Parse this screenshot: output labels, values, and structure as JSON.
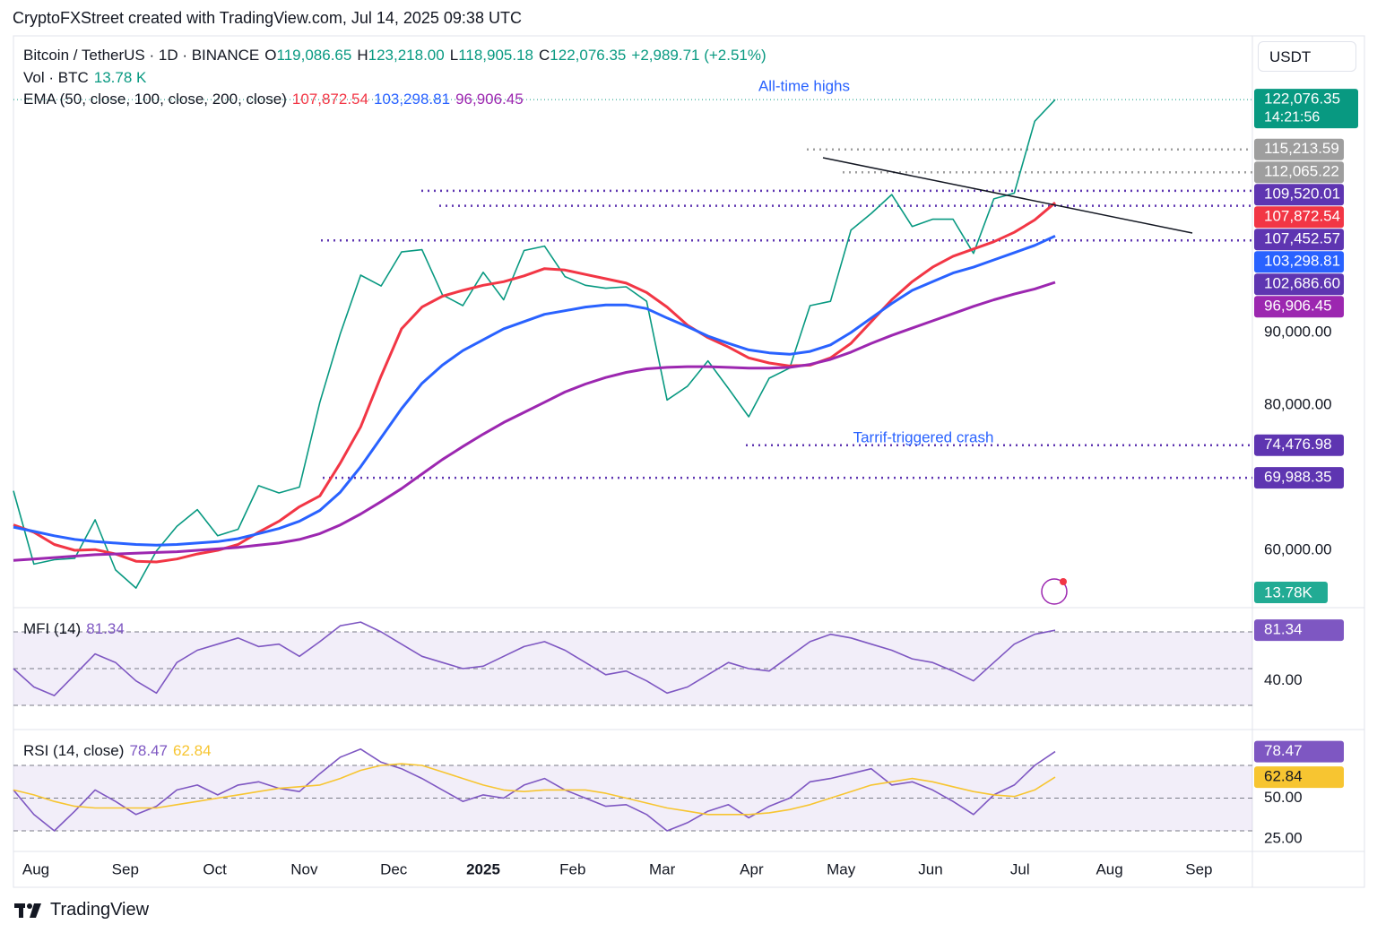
{
  "header": {
    "attribution": "CryptoFXStreet created with TradingView.com, Jul 14, 2025 09:38 UTC"
  },
  "footer": {
    "brand": "TradingView"
  },
  "chart_data": [
    {
      "type": "line",
      "title": "Bitcoin / TetherUS · 1D · BINANCE",
      "currency": "USDT",
      "ohlc": [
        {
          "name": "O",
          "value": 119086.65,
          "label": "119,086.65"
        },
        {
          "name": "H",
          "value": 123218.0,
          "label": "123,218.00"
        },
        {
          "name": "L",
          "value": 118905.18,
          "label": "118,905.18"
        },
        {
          "name": "C",
          "value": 122076.35,
          "label": "122,076.35"
        }
      ],
      "change": {
        "value": 2989.71,
        "label": "+2,989.71 (+2.51%)"
      },
      "volume": {
        "name": "Vol · BTC",
        "value": 13780,
        "label": "13.78 K",
        "axis_label": "13.78K"
      },
      "ema_legend": "EMA (50, close, 100, close, 200, close)",
      "countdown": "14:21:56",
      "annotations": [
        "All-time highs",
        "Tarrif-triggered crash"
      ],
      "x_labels": [
        "Aug",
        "Sep",
        "Oct",
        "Nov",
        "Dec",
        "2025",
        "Feb",
        "Mar",
        "Apr",
        "May",
        "Jun",
        "Jul",
        "Aug",
        "Sep"
      ],
      "ylim": [
        52100,
        130860
      ],
      "yticks": [
        {
          "value": 60000,
          "label": "60,000.00"
        },
        {
          "value": 80000,
          "label": "80,000.00"
        },
        {
          "value": 90000,
          "label": "90,000.00"
        }
      ],
      "levels": [
        {
          "value": 115213.59,
          "label": "115,213.59",
          "color": "#9e9e9e"
        },
        {
          "value": 112065.22,
          "label": "112,065.22",
          "color": "#9e9e9e"
        },
        {
          "value": 109520.01,
          "label": "109,520.01",
          "color": "#5e35b1"
        },
        {
          "value": 107452.57,
          "label": "107,452.57",
          "color": "#5e35b1"
        },
        {
          "value": 102686.6,
          "label": "102,686.60",
          "color": "#5e35b1"
        },
        {
          "value": 74476.98,
          "label": "74,476.98",
          "color": "#5e35b1"
        },
        {
          "value": 69988.35,
          "label": "69,988.35",
          "color": "#5e35b1"
        }
      ],
      "series": [
        {
          "color": "#089981",
          "last_label": "122,076.35",
          "values": [
            68200,
            58100,
            58700,
            58900,
            64200,
            57300,
            54800,
            59900,
            63300,
            65600,
            62000,
            62900,
            68900,
            67900,
            68700,
            80400,
            89800,
            97900,
            96400,
            101100,
            101400,
            95200,
            93700,
            98300,
            94500,
            101300,
            101900,
            97700,
            96500,
            96100,
            96300,
            94300,
            80700,
            82600,
            86100,
            82300,
            78400,
            83700,
            85100,
            93700,
            94300,
            104100,
            106400,
            109000,
            104600,
            105600,
            105600,
            100900,
            108400,
            109200,
            119100,
            122076.35
          ]
        },
        {
          "color": "#f23645",
          "last_label": "107,872.54",
          "values": [
            63500,
            62500,
            60800,
            60000,
            60100,
            59500,
            58500,
            58400,
            58800,
            59500,
            60000,
            60800,
            62500,
            64000,
            66000,
            67500,
            72000,
            77000,
            84000,
            90500,
            93500,
            95000,
            95800,
            96500,
            97000,
            97800,
            98800,
            98600,
            98000,
            97400,
            96800,
            95500,
            93500,
            91000,
            89300,
            88000,
            86500,
            85800,
            85400,
            85500,
            86500,
            88500,
            91500,
            94500,
            97000,
            99000,
            100500,
            101500,
            102500,
            103800,
            105500,
            107872.54
          ]
        },
        {
          "color": "#2962ff",
          "last_label": "103,298.81",
          "values": [
            63200,
            62600,
            62000,
            61500,
            61200,
            61000,
            60800,
            60700,
            60800,
            61000,
            61200,
            61600,
            62300,
            63000,
            64000,
            65500,
            68000,
            71500,
            75500,
            79500,
            83000,
            85500,
            87500,
            89000,
            90500,
            91500,
            92500,
            93000,
            93500,
            93800,
            93800,
            93300,
            92000,
            90800,
            89500,
            88500,
            87600,
            87200,
            87000,
            87400,
            88300,
            90000,
            92000,
            94000,
            95800,
            97000,
            98200,
            99000,
            100000,
            101000,
            102000,
            103298.81
          ]
        },
        {
          "color": "#9c27b0",
          "last_label": "96,906.45",
          "values": [
            58600,
            58800,
            59000,
            59200,
            59400,
            59500,
            59600,
            59700,
            59800,
            60000,
            60200,
            60400,
            60700,
            61000,
            61500,
            62300,
            63500,
            65000,
            66700,
            68500,
            70500,
            72500,
            74300,
            76000,
            77600,
            79000,
            80400,
            81800,
            82900,
            83800,
            84500,
            85000,
            85200,
            85300,
            85300,
            85200,
            85100,
            85100,
            85200,
            85600,
            86300,
            87300,
            88500,
            89600,
            90600,
            91600,
            92600,
            93600,
            94500,
            95300,
            96000,
            96906.45
          ]
        }
      ]
    },
    {
      "type": "line",
      "title": "MFI (14)",
      "ylim": [
        1.7,
        98.3
      ],
      "yticks": [
        {
          "value": 40,
          "label": "40.00"
        }
      ],
      "levels": [
        20,
        50,
        80
      ],
      "series": [
        {
          "color": "#7e57c2",
          "last_label": "81.34",
          "values": [
            50,
            35,
            28,
            45,
            62,
            55,
            40,
            30,
            55,
            65,
            70,
            75,
            68,
            70,
            60,
            72,
            85,
            88,
            80,
            70,
            60,
            55,
            50,
            52,
            60,
            68,
            72,
            65,
            55,
            45,
            48,
            40,
            30,
            35,
            45,
            55,
            50,
            48,
            60,
            72,
            78,
            75,
            70,
            65,
            58,
            55,
            48,
            40,
            55,
            70,
            78,
            81.34
          ]
        }
      ]
    },
    {
      "type": "line",
      "title": "RSI (14, close)",
      "ylim": [
        17.4,
        91.4
      ],
      "yticks": [
        {
          "value": 25,
          "label": "25.00"
        },
        {
          "value": 50,
          "label": "50.00"
        }
      ],
      "levels": [
        30,
        50,
        70
      ],
      "series": [
        {
          "color": "#7e57c2",
          "last_label": "78.47",
          "values": [
            55,
            40,
            30,
            42,
            55,
            48,
            40,
            45,
            55,
            58,
            52,
            58,
            60,
            56,
            54,
            65,
            75,
            80,
            72,
            68,
            62,
            55,
            48,
            52,
            50,
            58,
            62,
            55,
            50,
            45,
            46,
            40,
            30,
            35,
            42,
            46,
            38,
            45,
            50,
            60,
            62,
            65,
            68,
            58,
            60,
            55,
            48,
            40,
            52,
            58,
            70,
            78.47
          ]
        },
        {
          "color": "#f7c531",
          "last_label": "62.84",
          "values": [
            55,
            52,
            48,
            45,
            44,
            44,
            44,
            44,
            46,
            48,
            50,
            52,
            54,
            56,
            57,
            58,
            62,
            67,
            70,
            71,
            70,
            66,
            62,
            58,
            55,
            54,
            55,
            55,
            55,
            53,
            50,
            47,
            44,
            42,
            40,
            40,
            40,
            41,
            43,
            46,
            50,
            54,
            58,
            60,
            62,
            60,
            57,
            54,
            52,
            51,
            55,
            62.84
          ]
        }
      ]
    }
  ]
}
